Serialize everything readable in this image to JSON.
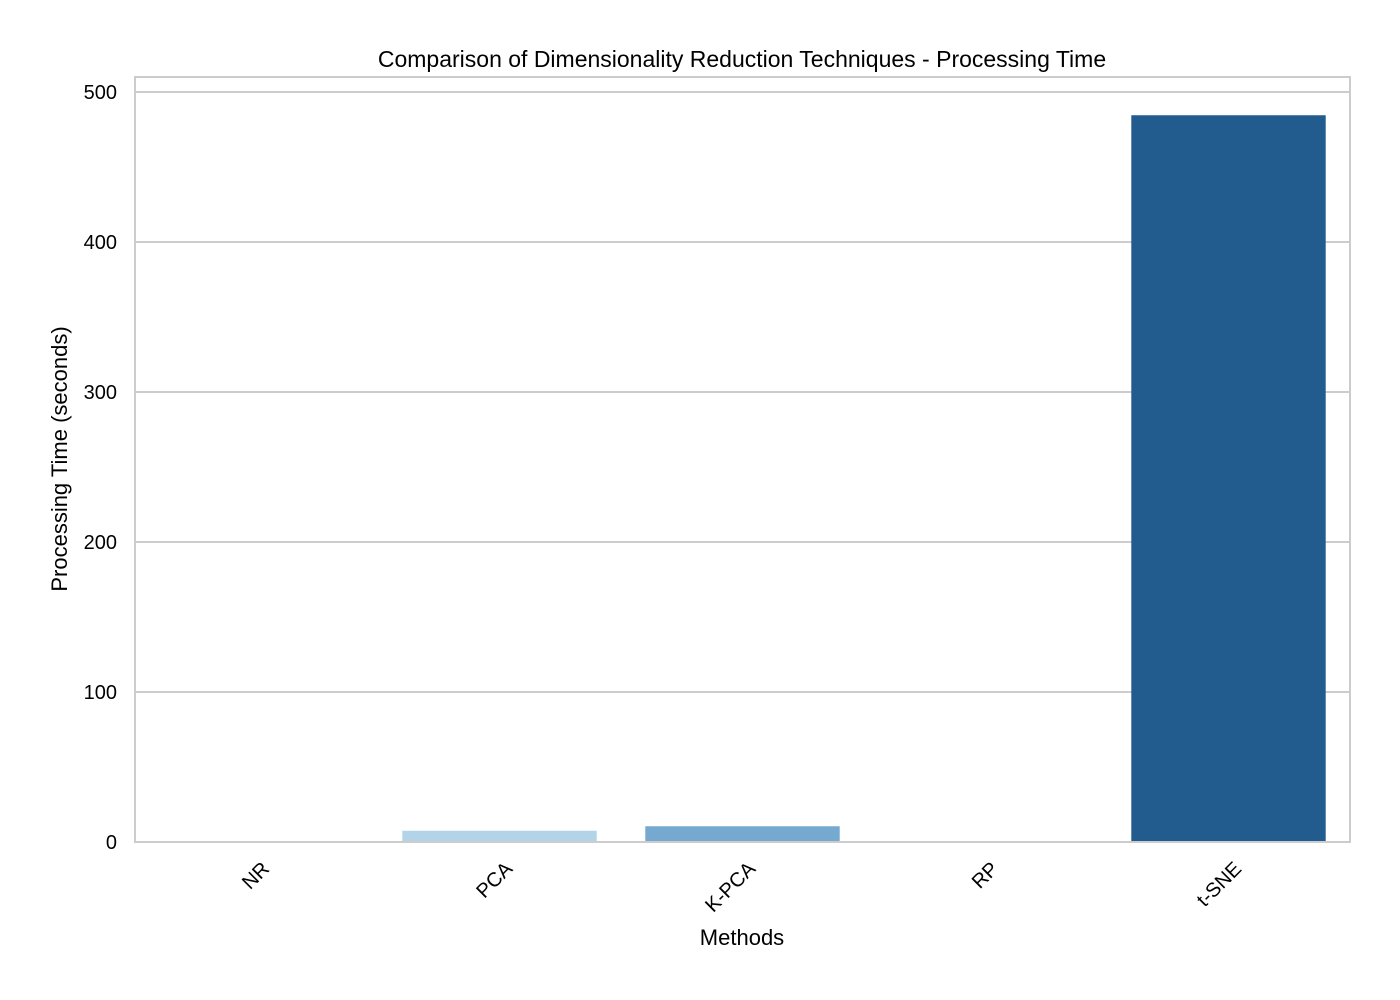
{
  "chart_data": {
    "type": "bar",
    "title": "Comparison of Dimensionality Reduction Techniques - Processing Time",
    "xlabel": "Methods",
    "ylabel": "Processing Time (seconds)",
    "categories": [
      "NR",
      "PCA",
      "K-PCA",
      "RP",
      "t-SNE"
    ],
    "values": [
      0.3,
      7.5,
      10.5,
      0.3,
      484.5
    ],
    "colors": [
      "#f7fbff",
      "#b3d3e8",
      "#75a9cf",
      "#e3eef9",
      "#225b8e"
    ],
    "ylim": [
      0,
      510
    ],
    "yticks": [
      0,
      100,
      200,
      300,
      400,
      500
    ],
    "grid": "horizontal",
    "legend": "none"
  }
}
